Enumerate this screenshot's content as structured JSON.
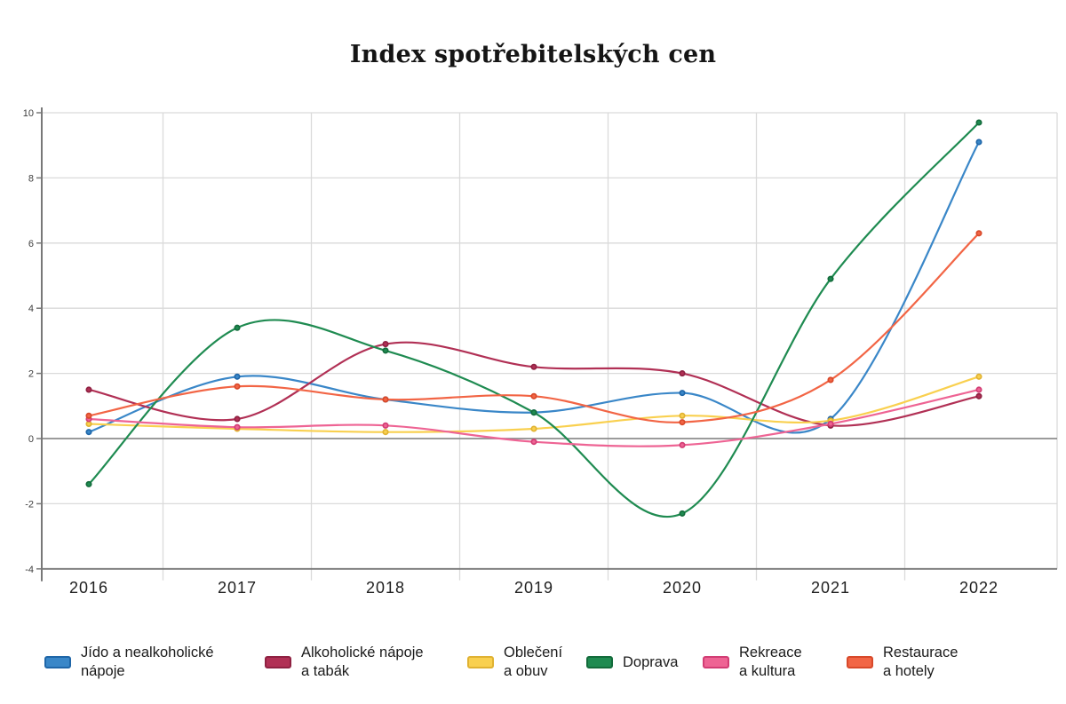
{
  "chart_data": {
    "type": "line",
    "title": "Index spotřebitelských cen",
    "line_shape": "spline",
    "categories": [
      "2016",
      "2017",
      "2018",
      "2019",
      "2020",
      "2021",
      "2022"
    ],
    "xlabel": "",
    "ylabel": "",
    "ylim": [
      -4,
      10
    ],
    "yticks": [
      10,
      8,
      6,
      4,
      2,
      0,
      -2,
      -4
    ],
    "grid": true,
    "legend_position": "bottom",
    "series": [
      {
        "name": "Jído a nealkoholické nápoje",
        "legend_label": "Jído a nealkoholické\nnápoje",
        "color": "#3a87c8",
        "marker_color": "#1f66a8",
        "values": [
          0.2,
          1.9,
          1.2,
          0.8,
          1.4,
          0.6,
          9.1
        ]
      },
      {
        "name": "Alkoholické nápoje a tabák",
        "legend_label": "Alkoholické nápoje\na tabák",
        "color": "#b13055",
        "marker_color": "#8f2142",
        "values": [
          1.5,
          0.6,
          2.9,
          2.2,
          2.0,
          0.4,
          1.3
        ]
      },
      {
        "name": "Oblečení a obuv",
        "legend_label": "Oblečení\na obuv",
        "color": "#f9d04f",
        "marker_color": "#e0b232",
        "values": [
          0.45,
          0.3,
          0.2,
          0.3,
          0.7,
          0.55,
          1.9
        ]
      },
      {
        "name": "Doprava",
        "legend_label": "Doprava",
        "color": "#1f8b51",
        "marker_color": "#136b3b",
        "values": [
          -1.4,
          3.4,
          2.7,
          0.8,
          -2.3,
          4.9,
          9.7
        ]
      },
      {
        "name": "Rekreace a kultura",
        "legend_label": "Rekreace\na kultura",
        "color": "#ee6494",
        "marker_color": "#d23d74",
        "values": [
          0.6,
          0.35,
          0.4,
          -0.1,
          -0.2,
          0.45,
          1.5
        ]
      },
      {
        "name": "Restaurace a hotely",
        "legend_label": "Restaurace\na hotely",
        "color": "#f26545",
        "marker_color": "#d8492a",
        "values": [
          0.7,
          1.6,
          1.2,
          1.3,
          0.5,
          1.8,
          6.3
        ]
      }
    ],
    "colors": {
      "background": "#ffffff",
      "grid_line": "#dadada",
      "zero_line": "#8d8d8d",
      "axis_line": "#787878",
      "tick_label": "#3d3d3d",
      "year_label": "#202020",
      "title": "#151515"
    }
  }
}
